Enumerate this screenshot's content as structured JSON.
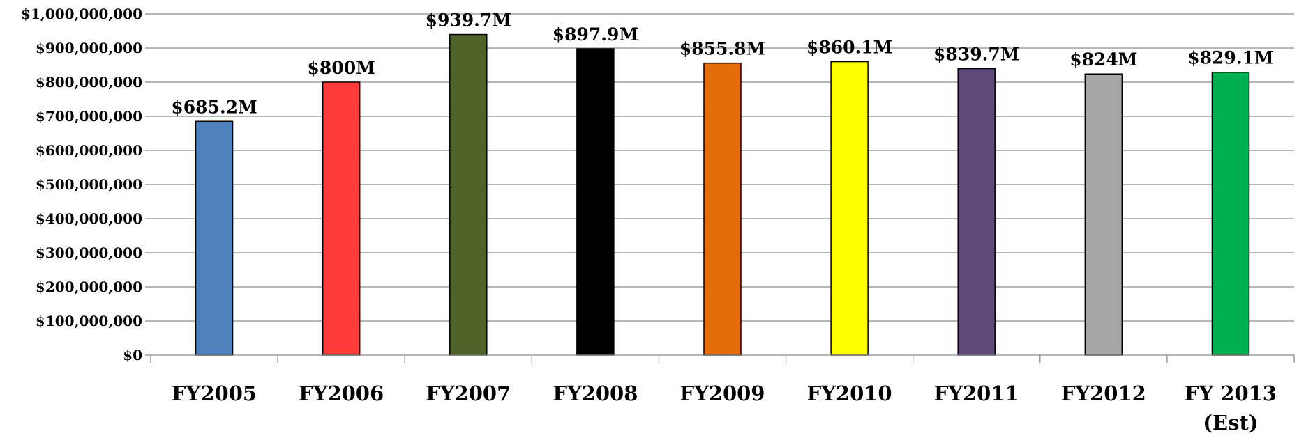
{
  "chart_data": {
    "type": "bar",
    "title": "",
    "xlabel": "",
    "ylabel": "",
    "ylim": [
      0,
      1000000000
    ],
    "y_tick_step": 100000000,
    "grid": true,
    "legend": "none",
    "categories": [
      [
        "FY2005"
      ],
      [
        "FY2006"
      ],
      [
        "FY2007"
      ],
      [
        "FY2008"
      ],
      [
        "FY2009"
      ],
      [
        "FY2010"
      ],
      [
        "FY2011"
      ],
      [
        "FY2012"
      ],
      [
        "FY 2013",
        "(Est)"
      ]
    ],
    "values": [
      685200000,
      800000000,
      939700000,
      897900000,
      855800000,
      860100000,
      839700000,
      824000000,
      829100000
    ],
    "data_labels": [
      "$685.2M",
      "$800M",
      "$939.7M",
      "$897.9M",
      "$855.8M",
      "$860.1M",
      "$839.7M",
      "$824M",
      "$829.1M"
    ],
    "y_tick_labels": [
      "$0",
      "$100,000,000",
      "$200,000,000",
      "$300,000,000",
      "$400,000,000",
      "$500,000,000",
      "$600,000,000",
      "$700,000,000",
      "$800,000,000",
      "$900,000,000",
      "$1,000,000,000"
    ],
    "colors": [
      "#4f81bd",
      "#ff3b3b",
      "#4f6228",
      "#000000",
      "#e46c0a",
      "#ffff00",
      "#5f497a",
      "#a6a6a6",
      "#00b050"
    ]
  }
}
